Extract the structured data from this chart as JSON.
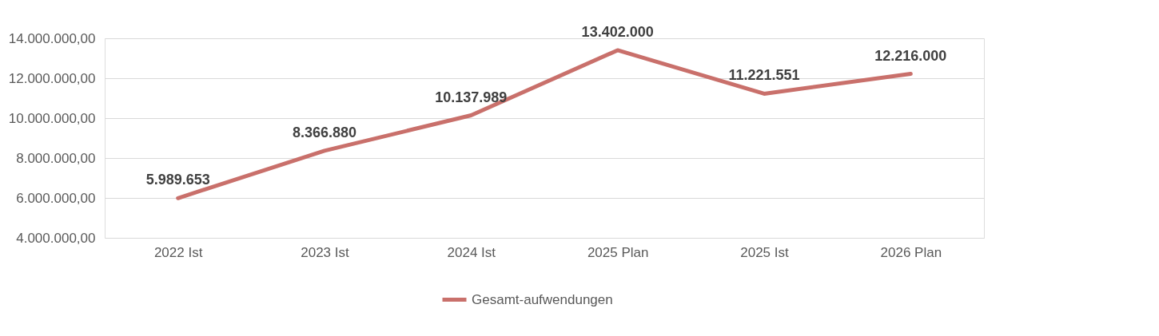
{
  "chart_data": {
    "type": "line",
    "categories": [
      "2022 Ist",
      "2023 Ist",
      "2024 Ist",
      "2025 Plan",
      "2025 Ist",
      "2026 Plan"
    ],
    "series": [
      {
        "name": "Gesamt-aufwendungen",
        "color": "#c9706b",
        "values": [
          5989653,
          8366880,
          10137989,
          13402000,
          11221551,
          12216000
        ],
        "value_labels": [
          "5.989.653",
          "8.366.880",
          "10.137.989",
          "13.402.000",
          "11.221.551",
          "12.216.000"
        ]
      }
    ],
    "ylim": [
      4000000,
      14000000
    ],
    "yticks": [
      {
        "value": 4000000,
        "label": "4.000.000,00"
      },
      {
        "value": 6000000,
        "label": "6.000.000,00"
      },
      {
        "value": 8000000,
        "label": "8.000.000,00"
      },
      {
        "value": 10000000,
        "label": "10.000.000,00"
      },
      {
        "value": 12000000,
        "label": "12.000.000,00"
      },
      {
        "value": 14000000,
        "label": "14.000.000,00"
      }
    ],
    "grid": "y",
    "legend": "bottom",
    "marker": "none",
    "line_style": "solid"
  }
}
